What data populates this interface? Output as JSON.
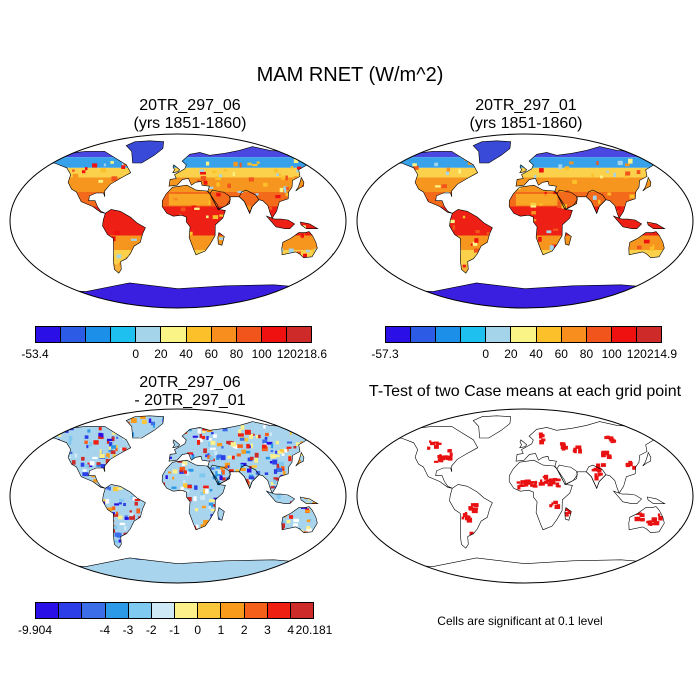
{
  "main_title": "MAM RNET (W/m^2)",
  "panels": [
    {
      "title_line1": "20TR_297_06",
      "title_line2": "(yrs 1851-1860)"
    },
    {
      "title_line1": "20TR_297_01",
      "title_line2": "(yrs 1851-1860)"
    },
    {
      "title_line1": "20TR_297_06",
      "title_line2": "- 20TR_297_01"
    },
    {
      "title_line1": "T-Test of two Case means at each grid point",
      "title_line2": ""
    }
  ],
  "colorbars": [
    {
      "colors": [
        "#2a0fe6",
        "#2c5be6",
        "#1c8fe8",
        "#1ec0f0",
        "#a3d4ea",
        "#faf487",
        "#fbc02a",
        "#f78e1d",
        "#f1551c",
        "#ef1010",
        "#cf2a2a"
      ],
      "labels": [
        "-53.4",
        "0",
        "20",
        "40",
        "60",
        "80",
        "100",
        "120",
        "218.6"
      ]
    },
    {
      "colors": [
        "#2a0fe6",
        "#2c5be6",
        "#1c8fe8",
        "#1ec0f0",
        "#a3d4ea",
        "#faf487",
        "#fbc02a",
        "#f78e1d",
        "#f1551c",
        "#ef1010",
        "#cf2a2a"
      ],
      "labels": [
        "-57.3",
        "0",
        "20",
        "40",
        "60",
        "80",
        "100",
        "120",
        "214.9"
      ]
    },
    {
      "colors": [
        "#2a0fe6",
        "#2c3ee8",
        "#3c6ee8",
        "#2d9ae8",
        "#7fc8ef",
        "#cfe9f6",
        "#fbf08a",
        "#fbc73a",
        "#f89a1a",
        "#f4601a",
        "#ef1f12",
        "#cd2a2a"
      ],
      "labels": [
        "-9.904",
        "-4",
        "-3",
        "-2",
        "-1",
        "0",
        "1",
        "2",
        "3",
        "4",
        "20.181"
      ]
    }
  ],
  "significance_note": "Cells are significant at 0.1 level",
  "map_colors": {
    "ocean": "#ffffff",
    "outline": "#000000",
    "antarctica": "#3a1fe0",
    "greenland": "#3a4ad8",
    "tropics": "#ee1f14",
    "subtropics": "#f7961e",
    "midlat": "#fbd04a",
    "highlat": "#7fc0ec",
    "diff_base": "#a9d4ee",
    "signif": "#e81010"
  }
}
